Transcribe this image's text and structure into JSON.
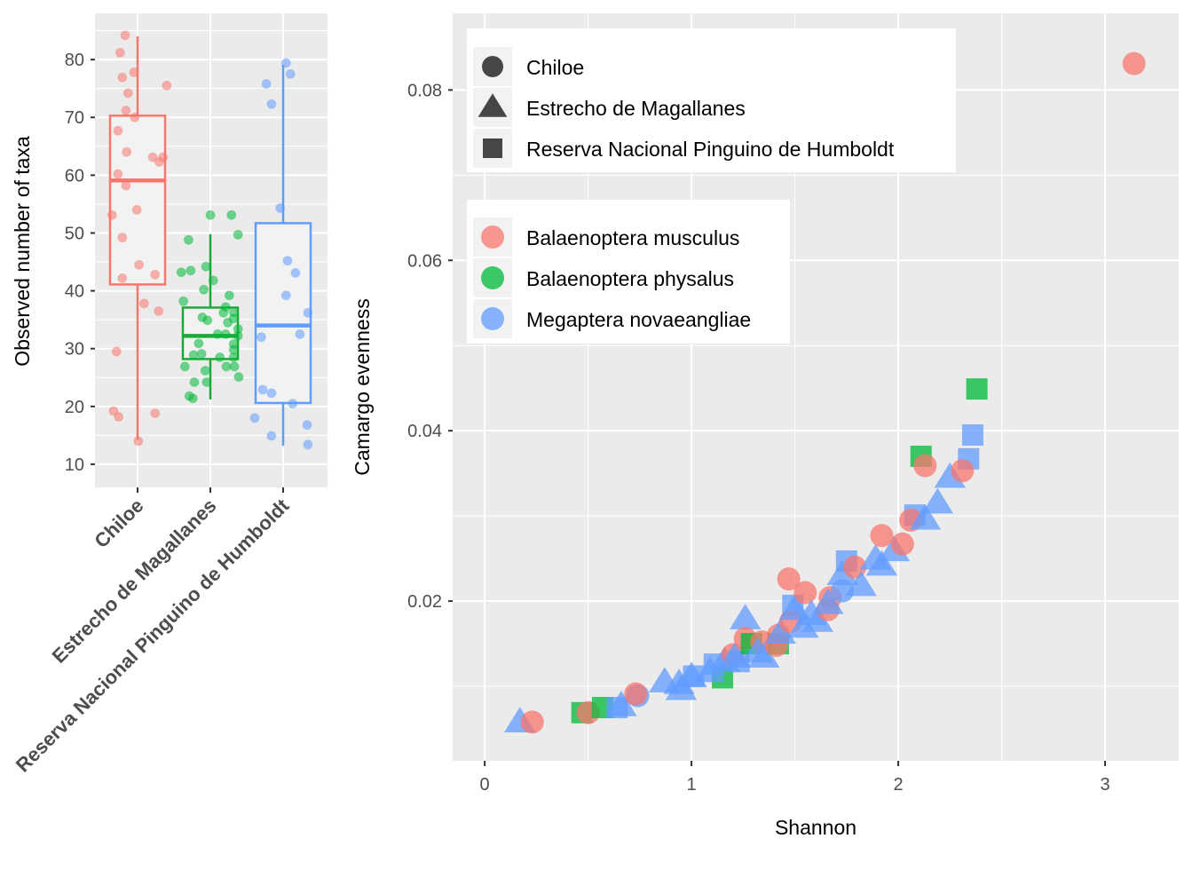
{
  "colors": {
    "Balaenoptera musculus": "#F8766D",
    "Balaenoptera physalus": "#00BA38",
    "Megaptera novaeangliae": "#619CFF",
    "box_fill": "#f2f2f2",
    "panel": "#ebebeb"
  },
  "chart_data": [
    {
      "type": "box",
      "title": "",
      "xlabel": "",
      "ylabel": "Observed number of taxa",
      "ylim": [
        6,
        88
      ],
      "yticks": [
        10,
        20,
        30,
        40,
        50,
        60,
        70,
        80
      ],
      "categories": [
        "Chiloe",
        "Estrecho de Magallanes",
        "Reserva Nacional Pinguino de Humboldt"
      ],
      "box_colors": [
        "#F8766D",
        "#1FA83A",
        "#619CFF"
      ],
      "boxes": [
        {
          "q1": 41.1,
          "median": 59.1,
          "q3": 70.3,
          "whisker_low": 14.2,
          "whisker_high": 84.0
        },
        {
          "q1": 28.2,
          "median": 32.2,
          "q3": 37.1,
          "whisker_low": 21.2,
          "whisker_high": 49.8
        },
        {
          "q1": 20.6,
          "median": 34.0,
          "q3": 51.7,
          "whisker_low": 13.2,
          "whisker_high": 79.1
        }
      ],
      "jitter_points": [
        [
          [
            -0.17,
            84.2
          ],
          [
            -0.24,
            81.2
          ],
          [
            -0.21,
            76.9
          ],
          [
            -0.05,
            77.8
          ],
          [
            0.4,
            75.5
          ],
          [
            -0.13,
            74.2
          ],
          [
            -0.16,
            71.2
          ],
          [
            -0.04,
            70.0
          ],
          [
            -0.27,
            67.7
          ],
          [
            -0.15,
            64.0
          ],
          [
            0.21,
            63.1
          ],
          [
            0.3,
            62.3
          ],
          [
            0.35,
            63.1
          ],
          [
            -0.27,
            60.2
          ],
          [
            -0.16,
            58.2
          ],
          [
            -0.01,
            54.0
          ],
          [
            -0.35,
            53.1
          ],
          [
            -0.21,
            49.2
          ],
          [
            0.02,
            44.5
          ],
          [
            0.24,
            42.8
          ],
          [
            -0.21,
            42.2
          ],
          [
            0.09,
            37.8
          ],
          [
            0.29,
            36.5
          ],
          [
            -0.29,
            29.5
          ],
          [
            -0.33,
            19.2
          ],
          [
            -0.26,
            18.2
          ],
          [
            0.24,
            18.8
          ],
          [
            0.01,
            14.0
          ]
        ],
        [
          [
            0.0,
            53.1
          ],
          [
            0.29,
            53.1
          ],
          [
            0.38,
            49.7
          ],
          [
            -0.3,
            48.8
          ],
          [
            -0.4,
            43.2
          ],
          [
            -0.27,
            43.5
          ],
          [
            -0.06,
            44.2
          ],
          [
            0.04,
            41.8
          ],
          [
            -0.09,
            40.2
          ],
          [
            0.26,
            39.2
          ],
          [
            -0.37,
            38.2
          ],
          [
            0.21,
            37.2
          ],
          [
            0.18,
            36.2
          ],
          [
            0.32,
            36.3
          ],
          [
            -0.11,
            35.4
          ],
          [
            -0.04,
            34.9
          ],
          [
            0.24,
            34.5
          ],
          [
            0.32,
            35.2
          ],
          [
            0.38,
            33.4
          ],
          [
            0.1,
            32.5
          ],
          [
            0.21,
            32.5
          ],
          [
            0.38,
            32.2
          ],
          [
            -0.16,
            30.9
          ],
          [
            0.32,
            30.8
          ],
          [
            -0.23,
            28.9
          ],
          [
            -0.12,
            29.1
          ],
          [
            0.13,
            28.5
          ],
          [
            0.32,
            28.5
          ],
          [
            0.32,
            29.8
          ],
          [
            -0.35,
            26.9
          ],
          [
            -0.07,
            26.2
          ],
          [
            0.22,
            26.9
          ],
          [
            0.33,
            26.9
          ],
          [
            0.39,
            25.1
          ],
          [
            -0.22,
            24.2
          ],
          [
            -0.05,
            24.2
          ],
          [
            -0.29,
            21.8
          ],
          [
            -0.24,
            21.4
          ]
        ],
        [
          [
            0.04,
            79.4
          ],
          [
            0.1,
            77.5
          ],
          [
            -0.23,
            75.8
          ],
          [
            -0.16,
            72.3
          ],
          [
            -0.04,
            54.3
          ],
          [
            0.06,
            45.2
          ],
          [
            0.17,
            43.1
          ],
          [
            0.04,
            39.2
          ],
          [
            0.34,
            36.2
          ],
          [
            0.23,
            32.5
          ],
          [
            -0.3,
            32.0
          ],
          [
            -0.28,
            22.9
          ],
          [
            -0.16,
            22.3
          ],
          [
            0.13,
            20.5
          ],
          [
            -0.39,
            18.0
          ],
          [
            0.33,
            16.8
          ],
          [
            -0.16,
            14.9
          ],
          [
            0.34,
            13.4
          ]
        ]
      ]
    },
    {
      "type": "scatter",
      "title": "",
      "xlabel": "Shannon",
      "ylabel": "Camargo evenness",
      "xlim": [
        -0.155,
        3.356
      ],
      "ylim": [
        0.00125,
        0.089
      ],
      "xticks": [
        0,
        1,
        2,
        3
      ],
      "yticks": [
        0.02,
        0.04,
        0.06,
        0.08
      ],
      "ytick_labels": [
        "0.02",
        "0.04",
        "0.06",
        "0.08"
      ],
      "grid": true,
      "legend_shape": {
        "placement": "top-left",
        "entries": [
          {
            "label": "Chiloe",
            "shape": "circle"
          },
          {
            "label": "Estrecho de Magallanes",
            "shape": "triangle"
          },
          {
            "label": "Reserva Nacional Pinguino de Humboldt",
            "shape": "square"
          }
        ]
      },
      "legend_color": {
        "placement": "top-left",
        "entries": [
          "Balaenoptera musculus",
          "Balaenoptera physalus",
          "Megaptera novaeangliae"
        ]
      },
      "points": [
        {
          "x": 0.17,
          "y": 0.0058,
          "shape": "triangle",
          "species": "Megaptera novaeangliae"
        },
        {
          "x": 0.23,
          "y": 0.0058,
          "shape": "circle",
          "species": "Balaenoptera musculus"
        },
        {
          "x": 0.47,
          "y": 0.0069,
          "shape": "square",
          "species": "Balaenoptera physalus"
        },
        {
          "x": 0.5,
          "y": 0.0069,
          "shape": "circle",
          "species": "Balaenoptera musculus"
        },
        {
          "x": 0.57,
          "y": 0.0075,
          "shape": "square",
          "species": "Balaenoptera physalus"
        },
        {
          "x": 0.64,
          "y": 0.0075,
          "shape": "square",
          "species": "Megaptera novaeangliae"
        },
        {
          "x": 0.66,
          "y": 0.0077,
          "shape": "triangle",
          "species": "Megaptera novaeangliae"
        },
        {
          "x": 0.74,
          "y": 0.0089,
          "shape": "circle",
          "species": "Megaptera novaeangliae"
        },
        {
          "x": 0.73,
          "y": 0.0091,
          "shape": "circle",
          "species": "Balaenoptera musculus"
        },
        {
          "x": 0.87,
          "y": 0.0105,
          "shape": "triangle",
          "species": "Megaptera novaeangliae"
        },
        {
          "x": 0.94,
          "y": 0.0103,
          "shape": "triangle",
          "species": "Megaptera novaeangliae"
        },
        {
          "x": 0.95,
          "y": 0.0096,
          "shape": "triangle",
          "species": "Megaptera novaeangliae"
        },
        {
          "x": 1.0,
          "y": 0.0111,
          "shape": "triangle",
          "species": "Megaptera novaeangliae"
        },
        {
          "x": 1.01,
          "y": 0.0112,
          "shape": "square",
          "species": "Megaptera novaeangliae"
        },
        {
          "x": 1.15,
          "y": 0.011,
          "shape": "square",
          "species": "Balaenoptera physalus"
        },
        {
          "x": 1.09,
          "y": 0.0117,
          "shape": "triangle",
          "species": "Megaptera novaeangliae"
        },
        {
          "x": 1.11,
          "y": 0.0126,
          "shape": "square",
          "species": "Megaptera novaeangliae"
        },
        {
          "x": 1.16,
          "y": 0.0129,
          "shape": "triangle",
          "species": "Megaptera novaeangliae"
        },
        {
          "x": 1.2,
          "y": 0.0137,
          "shape": "circle",
          "species": "Balaenoptera musculus"
        },
        {
          "x": 1.21,
          "y": 0.0134,
          "shape": "triangle",
          "species": "Megaptera novaeangliae"
        },
        {
          "x": 1.23,
          "y": 0.0129,
          "shape": "square",
          "species": "Megaptera novaeangliae"
        },
        {
          "x": 1.26,
          "y": 0.0179,
          "shape": "triangle",
          "species": "Megaptera novaeangliae"
        },
        {
          "x": 1.26,
          "y": 0.0156,
          "shape": "circle",
          "species": "Balaenoptera musculus"
        },
        {
          "x": 1.29,
          "y": 0.015,
          "shape": "square",
          "species": "Balaenoptera physalus"
        },
        {
          "x": 1.34,
          "y": 0.0152,
          "shape": "circle",
          "species": "Balaenoptera musculus"
        },
        {
          "x": 1.32,
          "y": 0.014,
          "shape": "triangle",
          "species": "Megaptera novaeangliae"
        },
        {
          "x": 1.35,
          "y": 0.0134,
          "shape": "triangle",
          "species": "Megaptera novaeangliae"
        },
        {
          "x": 1.42,
          "y": 0.015,
          "shape": "square",
          "species": "Balaenoptera physalus"
        },
        {
          "x": 1.41,
          "y": 0.0148,
          "shape": "circle",
          "species": "Balaenoptera musculus"
        },
        {
          "x": 1.42,
          "y": 0.016,
          "shape": "circle",
          "species": "Balaenoptera musculus"
        },
        {
          "x": 1.43,
          "y": 0.0162,
          "shape": "triangle",
          "species": "Megaptera novaeangliae"
        },
        {
          "x": 1.47,
          "y": 0.0226,
          "shape": "circle",
          "species": "Balaenoptera musculus"
        },
        {
          "x": 1.49,
          "y": 0.0195,
          "shape": "square",
          "species": "Megaptera novaeangliae"
        },
        {
          "x": 1.48,
          "y": 0.0176,
          "shape": "circle",
          "species": "Balaenoptera musculus"
        },
        {
          "x": 1.5,
          "y": 0.019,
          "shape": "triangle",
          "species": "Megaptera novaeangliae"
        },
        {
          "x": 1.55,
          "y": 0.021,
          "shape": "circle",
          "species": "Balaenoptera musculus"
        },
        {
          "x": 1.54,
          "y": 0.0169,
          "shape": "triangle",
          "species": "Megaptera novaeangliae"
        },
        {
          "x": 1.58,
          "y": 0.0184,
          "shape": "triangle",
          "species": "Megaptera novaeangliae"
        },
        {
          "x": 1.61,
          "y": 0.0176,
          "shape": "triangle",
          "species": "Megaptera novaeangliae"
        },
        {
          "x": 1.67,
          "y": 0.0204,
          "shape": "circle",
          "species": "Balaenoptera musculus"
        },
        {
          "x": 1.66,
          "y": 0.019,
          "shape": "circle",
          "species": "Balaenoptera musculus"
        },
        {
          "x": 1.66,
          "y": 0.0197,
          "shape": "triangle",
          "species": "Megaptera novaeangliae"
        },
        {
          "x": 1.73,
          "y": 0.0212,
          "shape": "circle",
          "species": "Megaptera novaeangliae"
        },
        {
          "x": 1.73,
          "y": 0.0231,
          "shape": "triangle",
          "species": "Megaptera novaeangliae"
        },
        {
          "x": 1.75,
          "y": 0.0247,
          "shape": "square",
          "species": "Megaptera novaeangliae"
        },
        {
          "x": 1.79,
          "y": 0.024,
          "shape": "circle",
          "species": "Balaenoptera musculus"
        },
        {
          "x": 1.82,
          "y": 0.0218,
          "shape": "triangle",
          "species": "Megaptera novaeangliae"
        },
        {
          "x": 1.89,
          "y": 0.0249,
          "shape": "triangle",
          "species": "Megaptera novaeangliae"
        },
        {
          "x": 1.92,
          "y": 0.0242,
          "shape": "triangle",
          "species": "Megaptera novaeangliae"
        },
        {
          "x": 1.98,
          "y": 0.0259,
          "shape": "triangle",
          "species": "Megaptera novaeangliae"
        },
        {
          "x": 2.02,
          "y": 0.0267,
          "shape": "circle",
          "species": "Balaenoptera musculus"
        },
        {
          "x": 1.92,
          "y": 0.0277,
          "shape": "circle",
          "species": "Balaenoptera musculus"
        },
        {
          "x": 2.08,
          "y": 0.0301,
          "shape": "square",
          "species": "Megaptera novaeangliae"
        },
        {
          "x": 2.06,
          "y": 0.0295,
          "shape": "circle",
          "species": "Balaenoptera musculus"
        },
        {
          "x": 2.13,
          "y": 0.0296,
          "shape": "triangle",
          "species": "Megaptera novaeangliae"
        },
        {
          "x": 2.19,
          "y": 0.0315,
          "shape": "triangle",
          "species": "Megaptera novaeangliae"
        },
        {
          "x": 2.25,
          "y": 0.0345,
          "shape": "triangle",
          "species": "Megaptera novaeangliae"
        },
        {
          "x": 2.11,
          "y": 0.037,
          "shape": "square",
          "species": "Balaenoptera physalus"
        },
        {
          "x": 2.13,
          "y": 0.0359,
          "shape": "circle",
          "species": "Balaenoptera musculus"
        },
        {
          "x": 2.34,
          "y": 0.0367,
          "shape": "square",
          "species": "Megaptera novaeangliae"
        },
        {
          "x": 2.31,
          "y": 0.0353,
          "shape": "circle",
          "species": "Balaenoptera musculus"
        },
        {
          "x": 2.36,
          "y": 0.0395,
          "shape": "square",
          "species": "Megaptera novaeangliae"
        },
        {
          "x": 2.38,
          "y": 0.0449,
          "shape": "square",
          "species": "Balaenoptera physalus"
        },
        {
          "x": 3.14,
          "y": 0.0831,
          "shape": "circle",
          "species": "Balaenoptera musculus"
        }
      ]
    }
  ]
}
